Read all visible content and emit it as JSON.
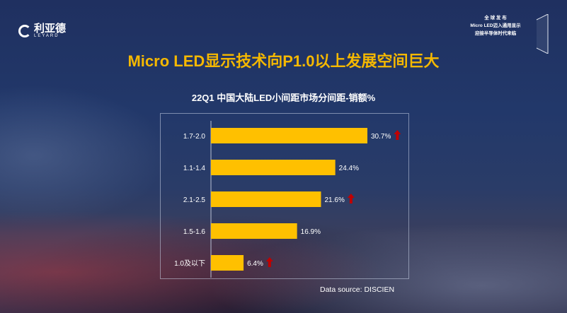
{
  "logo": {
    "cn": "利亚德",
    "en": "LEYARD"
  },
  "badge": {
    "lines": [
      "全 球 发 布",
      "Micro LED迈入通用显示",
      "迎接半导体时代来临"
    ]
  },
  "title": "Micro LED显示技术向P1.0以上发展空间巨大",
  "chart_data": {
    "type": "bar",
    "orientation": "horizontal",
    "title": "22Q1 中国大陆LED小间距市场分间距-销额%",
    "categories": [
      "1.7-2.0",
      "1.1-1.4",
      "2.1-2.5",
      "1.5-1.6",
      "1.0及以下"
    ],
    "values": [
      30.7,
      24.4,
      21.6,
      16.9,
      6.4
    ],
    "data_labels": [
      "30.7%",
      "24.4%",
      "21.6%",
      "16.9%",
      "6.4%"
    ],
    "up_arrow": [
      true,
      false,
      true,
      false,
      true
    ],
    "xlim": [
      0,
      38
    ],
    "grid": false,
    "bar_color": "#ffc000",
    "arrow_color": "#c00000",
    "source": "Data source: DISCIEN"
  }
}
